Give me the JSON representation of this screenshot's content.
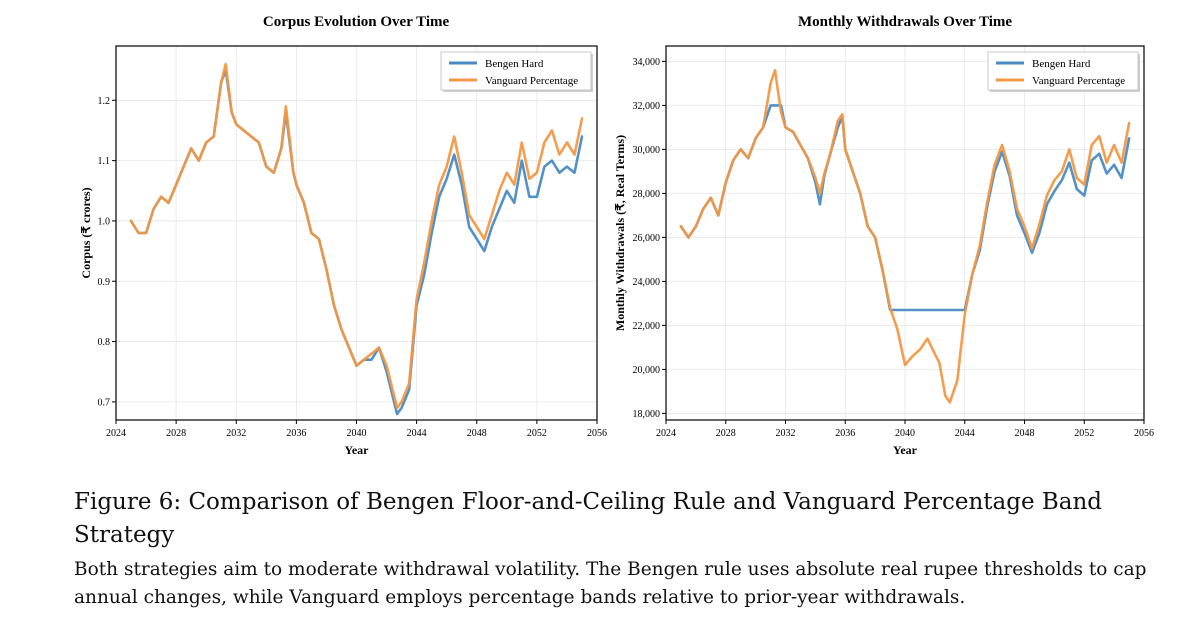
{
  "chart_data": [
    {
      "type": "line",
      "title": "Corpus Evolution Over Time",
      "xlabel": "Year",
      "ylabel": "Corpus (₹ crores)",
      "xlim": [
        2024,
        2056
      ],
      "ylim": [
        0.67,
        1.29
      ],
      "xticks": [
        2024,
        2028,
        2032,
        2036,
        2040,
        2044,
        2048,
        2052,
        2056
      ],
      "xtick_labels": [
        "2024",
        "2028",
        "2032",
        "2036",
        "2040",
        "2044",
        "2048",
        "2052",
        "2056"
      ],
      "yticks": [
        0.7,
        0.8,
        0.9,
        1.0,
        1.1,
        1.2
      ],
      "ytick_labels": [
        "0.7",
        "0.8",
        "0.9",
        "1.0",
        "1.1",
        "1.2"
      ],
      "grid": true,
      "legend_position": "top-right",
      "series": [
        {
          "name": "Bengen Hard",
          "color": "#4a8bc4",
          "x": [
            2025.0,
            2025.5,
            2026.0,
            2026.5,
            2027.0,
            2027.5,
            2028.0,
            2028.5,
            2029.0,
            2029.5,
            2030.0,
            2030.5,
            2031.0,
            2031.3,
            2031.7,
            2032.0,
            2032.5,
            2033.0,
            2033.5,
            2034.0,
            2034.5,
            2035.0,
            2035.3,
            2035.8,
            2036.0,
            2036.5,
            2037.0,
            2037.5,
            2038.0,
            2038.5,
            2039.0,
            2039.5,
            2040.0,
            2040.5,
            2041.0,
            2041.5,
            2042.0,
            2042.3,
            2042.7,
            2043.0,
            2043.5,
            2044.0,
            2044.5,
            2045.0,
            2045.5,
            2046.0,
            2046.5,
            2047.0,
            2047.5,
            2048.0,
            2048.5,
            2049.0,
            2049.5,
            2050.0,
            2050.5,
            2051.0,
            2051.5,
            2052.0,
            2052.5,
            2053.0,
            2053.5,
            2054.0,
            2054.5,
            2055.0
          ],
          "y": [
            1.0,
            0.98,
            0.98,
            1.02,
            1.04,
            1.03,
            1.06,
            1.09,
            1.12,
            1.1,
            1.13,
            1.14,
            1.23,
            1.25,
            1.18,
            1.16,
            1.15,
            1.14,
            1.13,
            1.09,
            1.08,
            1.12,
            1.18,
            1.08,
            1.06,
            1.03,
            0.98,
            0.97,
            0.92,
            0.86,
            0.82,
            0.79,
            0.76,
            0.77,
            0.77,
            0.79,
            0.75,
            0.72,
            0.68,
            0.69,
            0.72,
            0.86,
            0.91,
            0.98,
            1.04,
            1.07,
            1.11,
            1.06,
            0.99,
            0.97,
            0.95,
            0.99,
            1.02,
            1.05,
            1.03,
            1.1,
            1.04,
            1.04,
            1.09,
            1.1,
            1.08,
            1.09,
            1.08,
            1.14
          ]
        },
        {
          "name": "Vanguard Percentage",
          "color": "#f39845",
          "x": [
            2025.0,
            2025.5,
            2026.0,
            2026.5,
            2027.0,
            2027.5,
            2028.0,
            2028.5,
            2029.0,
            2029.5,
            2030.0,
            2030.5,
            2031.0,
            2031.3,
            2031.7,
            2032.0,
            2032.5,
            2033.0,
            2033.5,
            2034.0,
            2034.5,
            2035.0,
            2035.3,
            2035.8,
            2036.0,
            2036.5,
            2037.0,
            2037.5,
            2038.0,
            2038.5,
            2039.0,
            2039.5,
            2040.0,
            2040.5,
            2041.0,
            2041.5,
            2042.0,
            2042.3,
            2042.7,
            2043.0,
            2043.5,
            2044.0,
            2044.5,
            2045.0,
            2045.5,
            2046.0,
            2046.5,
            2047.0,
            2047.5,
            2048.0,
            2048.5,
            2049.0,
            2049.5,
            2050.0,
            2050.5,
            2051.0,
            2051.5,
            2052.0,
            2052.5,
            2053.0,
            2053.5,
            2054.0,
            2054.5,
            2055.0
          ],
          "y": [
            1.0,
            0.98,
            0.98,
            1.02,
            1.04,
            1.03,
            1.06,
            1.09,
            1.12,
            1.1,
            1.13,
            1.14,
            1.23,
            1.26,
            1.18,
            1.16,
            1.15,
            1.14,
            1.13,
            1.09,
            1.08,
            1.12,
            1.19,
            1.08,
            1.06,
            1.03,
            0.98,
            0.97,
            0.92,
            0.86,
            0.82,
            0.79,
            0.76,
            0.77,
            0.78,
            0.79,
            0.76,
            0.73,
            0.69,
            0.7,
            0.73,
            0.87,
            0.93,
            1.0,
            1.06,
            1.09,
            1.14,
            1.08,
            1.01,
            0.99,
            0.97,
            1.01,
            1.05,
            1.08,
            1.06,
            1.13,
            1.07,
            1.08,
            1.13,
            1.15,
            1.11,
            1.13,
            1.11,
            1.17
          ]
        }
      ]
    },
    {
      "type": "line",
      "title": "Monthly Withdrawals Over Time",
      "xlabel": "Year",
      "ylabel": "Monthly Withdrawals (₹, Real Terms)",
      "xlim": [
        2024,
        2056
      ],
      "ylim": [
        17700,
        34700
      ],
      "xticks": [
        2024,
        2028,
        2032,
        2036,
        2040,
        2044,
        2048,
        2052,
        2056
      ],
      "xtick_labels": [
        "2024",
        "2028",
        "2032",
        "2036",
        "2040",
        "2044",
        "2048",
        "2052",
        "2056"
      ],
      "yticks": [
        18000,
        20000,
        22000,
        24000,
        26000,
        28000,
        30000,
        32000,
        34000
      ],
      "ytick_labels": [
        "18,000",
        "20,000",
        "22,000",
        "24,000",
        "26,000",
        "28,000",
        "30,000",
        "32,000",
        "34,000"
      ],
      "grid": true,
      "legend_position": "top-right",
      "series": [
        {
          "name": "Bengen Hard",
          "color": "#4a8bc4",
          "x": [
            2025.0,
            2025.5,
            2026.0,
            2026.5,
            2027.0,
            2027.5,
            2028.0,
            2028.5,
            2029.0,
            2029.5,
            2030.0,
            2030.5,
            2031.0,
            2031.3,
            2031.7,
            2032.0,
            2032.5,
            2033.0,
            2033.5,
            2034.0,
            2034.3,
            2034.6,
            2035.0,
            2035.5,
            2035.8,
            2036.0,
            2036.5,
            2037.0,
            2037.5,
            2038.0,
            2038.5,
            2039.0,
            2039.5,
            2040.0,
            2041.0,
            2042.0,
            2043.0,
            2044.0,
            2044.5,
            2045.0,
            2045.5,
            2046.0,
            2046.5,
            2047.0,
            2047.5,
            2048.0,
            2048.5,
            2049.0,
            2049.5,
            2050.0,
            2050.5,
            2051.0,
            2051.5,
            2052.0,
            2052.5,
            2053.0,
            2053.5,
            2054.0,
            2054.5,
            2055.0
          ],
          "y": [
            26500,
            26000,
            26500,
            27300,
            27800,
            27000,
            28500,
            29500,
            30000,
            29600,
            30500,
            31000,
            32000,
            32000,
            32000,
            31000,
            30800,
            30200,
            29600,
            28500,
            27500,
            28800,
            29800,
            31000,
            31500,
            30000,
            29000,
            28000,
            26500,
            26000,
            24500,
            22700,
            22700,
            22700,
            22700,
            22700,
            22700,
            22700,
            24300,
            25400,
            27400,
            29000,
            29900,
            28800,
            27000,
            26200,
            25300,
            26200,
            27500,
            28100,
            28600,
            29400,
            28200,
            27900,
            29500,
            29800,
            28900,
            29300,
            28700,
            30500
          ]
        },
        {
          "name": "Vanguard Percentage",
          "color": "#f39845",
          "x": [
            2025.0,
            2025.5,
            2026.0,
            2026.5,
            2027.0,
            2027.5,
            2028.0,
            2028.5,
            2029.0,
            2029.5,
            2030.0,
            2030.5,
            2031.0,
            2031.3,
            2031.7,
            2032.0,
            2032.5,
            2033.0,
            2033.5,
            2034.0,
            2034.3,
            2034.6,
            2035.0,
            2035.5,
            2035.8,
            2036.0,
            2036.5,
            2037.0,
            2037.5,
            2038.0,
            2038.5,
            2039.0,
            2039.5,
            2040.0,
            2040.5,
            2041.0,
            2041.5,
            2042.0,
            2042.3,
            2042.7,
            2043.0,
            2043.5,
            2044.0,
            2044.5,
            2045.0,
            2045.5,
            2046.0,
            2046.5,
            2047.0,
            2047.5,
            2048.0,
            2048.5,
            2049.0,
            2049.5,
            2050.0,
            2050.5,
            2051.0,
            2051.5,
            2052.0,
            2052.5,
            2053.0,
            2053.5,
            2054.0,
            2054.5,
            2055.0
          ],
          "y": [
            26500,
            26000,
            26500,
            27300,
            27800,
            27000,
            28500,
            29500,
            30000,
            29600,
            30500,
            31000,
            33000,
            33600,
            31700,
            31000,
            30800,
            30200,
            29600,
            28700,
            28000,
            28900,
            29800,
            31300,
            31600,
            30000,
            29000,
            28000,
            26500,
            26000,
            24500,
            22800,
            21800,
            20200,
            20600,
            20900,
            21400,
            20700,
            20300,
            18800,
            18500,
            19500,
            22500,
            24300,
            25600,
            27600,
            29300,
            30200,
            29000,
            27300,
            26500,
            25500,
            26600,
            27900,
            28600,
            29000,
            30000,
            28700,
            28400,
            30200,
            30600,
            29400,
            30200,
            29400,
            31200
          ]
        }
      ]
    }
  ],
  "caption": {
    "title": "Figure 6: Comparison of Bengen Floor-and-Ceiling Rule and Vanguard Percentage Band Strategy",
    "body": "Both strategies aim to moderate withdrawal volatility. The Bengen rule uses absolute real rupee thresholds to cap annual changes, while Vanguard employs percentage bands relative to prior-year withdrawals."
  }
}
